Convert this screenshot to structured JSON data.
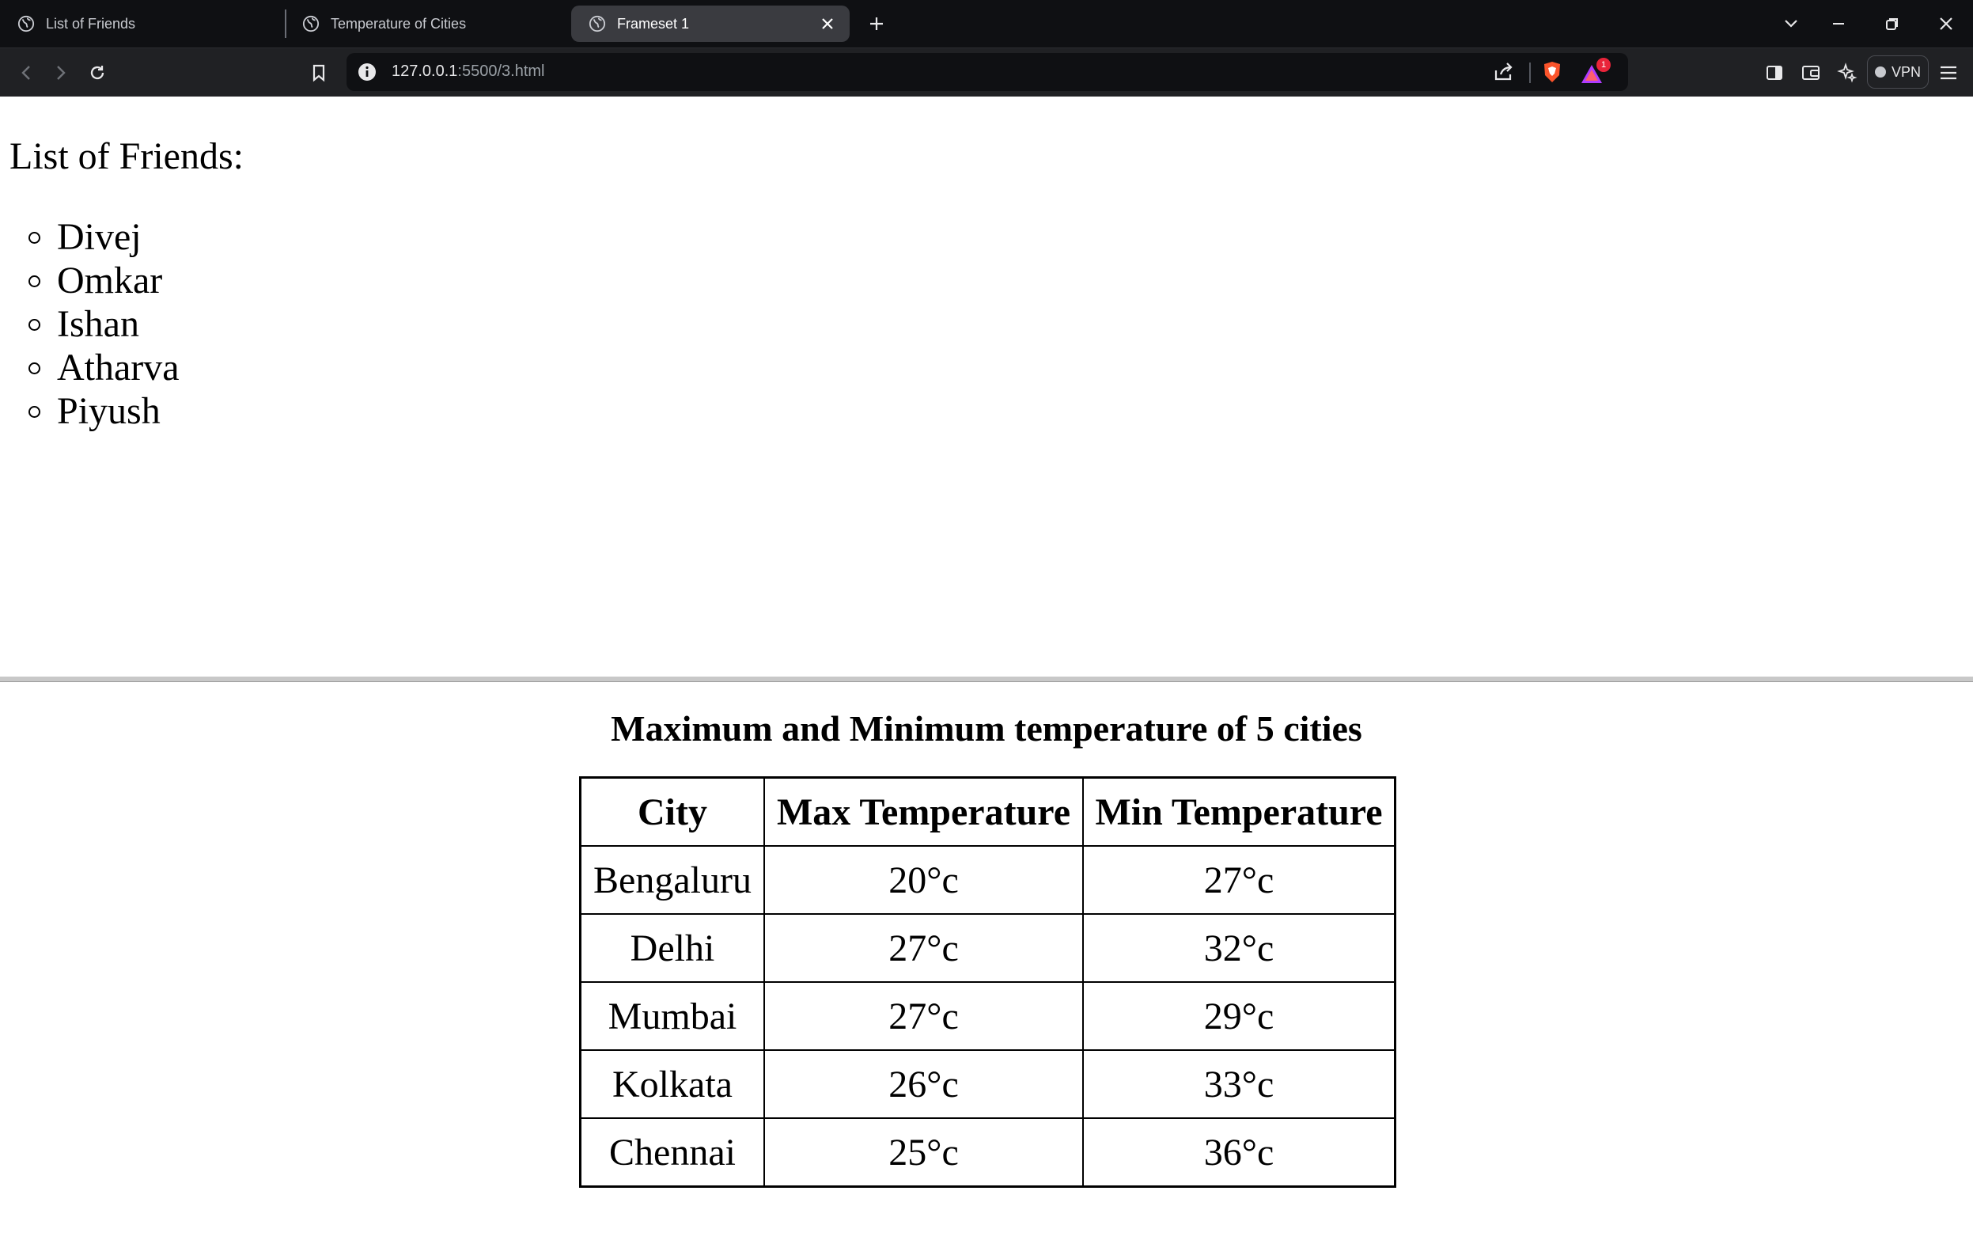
{
  "browser": {
    "tabs": [
      {
        "title": "List of Friends",
        "active": false
      },
      {
        "title": "Temperature of Cities",
        "active": false
      },
      {
        "title": "Frameset 1",
        "active": true
      }
    ],
    "address": {
      "host": "127.0.0.1",
      "rest": ":5500/3.html"
    },
    "vpn_label": "VPN",
    "notification_count": "1",
    "icons": [
      "globe-icon",
      "close-icon",
      "plus-icon",
      "chevron-down-icon",
      "minimize-icon",
      "restore-icon",
      "back-icon",
      "forward-icon",
      "reload-icon",
      "bookmark-icon",
      "info-icon",
      "share-icon",
      "brave-shield-icon",
      "brave-rewards-icon",
      "sidebar-icon",
      "wallet-icon",
      "leo-icon",
      "menu-icon"
    ]
  },
  "friends": {
    "heading": "List of Friends:",
    "items": [
      "Divej",
      "Omkar",
      "Ishan",
      "Atharva",
      "Piyush"
    ]
  },
  "temperatures": {
    "caption": "Maximum and Minimum temperature of 5 cities",
    "headers": [
      "City",
      "Max Temperature",
      "Min Temperature"
    ],
    "rows": [
      [
        "Bengaluru",
        "20°c",
        "27°c"
      ],
      [
        "Delhi",
        "27°c",
        "32°c"
      ],
      [
        "Mumbai",
        "27°c",
        "29°c"
      ],
      [
        "Kolkata",
        "26°c",
        "33°c"
      ],
      [
        "Chennai",
        "25°c",
        "36°c"
      ]
    ]
  }
}
